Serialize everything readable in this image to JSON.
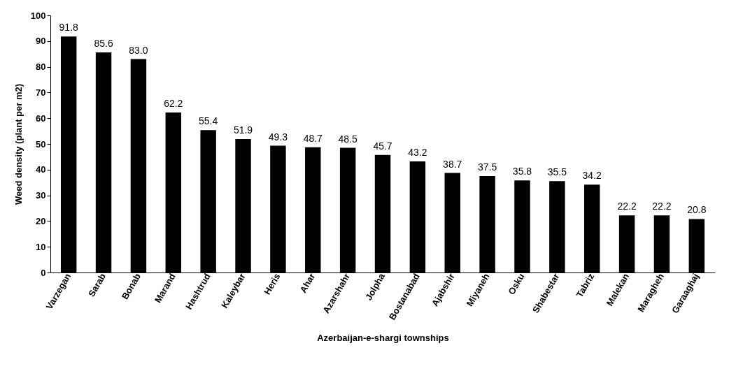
{
  "chart_data": {
    "type": "bar",
    "xlabel": "Azerbaijan-e-shargi townships",
    "ylabel": "Weed density (plant per m2)",
    "categories": [
      "Varzegan",
      "Sarab",
      "Bonab",
      "Marand",
      "Hashtrud",
      "Kaleybar",
      "Heris",
      "Ahar",
      "Azarshahr",
      "Jolpha",
      "Bostanabad",
      "Ajabshir",
      "Miyaneh",
      "Osku",
      "Shabestar",
      "Tabriz",
      "Malekan",
      "Maragheh",
      "Garaaghaj"
    ],
    "values": [
      91.8,
      85.6,
      83.0,
      62.2,
      55.4,
      51.9,
      49.3,
      48.7,
      48.5,
      45.7,
      43.2,
      38.7,
      37.5,
      35.8,
      35.5,
      34.2,
      22.2,
      22.2,
      20.8
    ],
    "value_labels": [
      "91.8",
      "85.6",
      "83.0",
      "62.2",
      "55.4",
      "51.9",
      "49.3",
      "48.7",
      "48.5",
      "45.7",
      "43.2",
      "38.7",
      "37.5",
      "35.8",
      "35.5",
      "34.2",
      "22.2",
      "22.2",
      "20.8"
    ],
    "color": "#000000",
    "ylim": [
      0,
      100
    ],
    "yticks": [
      0,
      10,
      20,
      30,
      40,
      50,
      60,
      70,
      80,
      90,
      100
    ],
    "grid": false
  }
}
